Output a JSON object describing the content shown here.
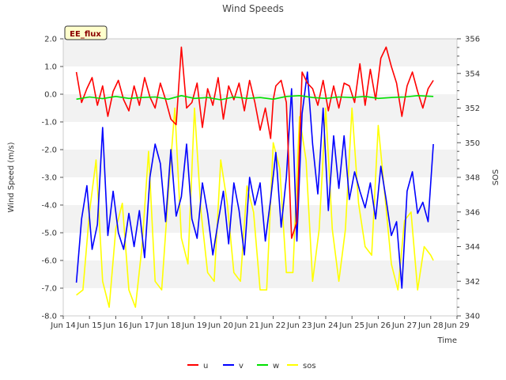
{
  "chart_data": {
    "type": "line",
    "title": "Wind Speeds",
    "xlabel": "Time",
    "ylabel": "Wind Speed (m/s)",
    "y2label": "SOS",
    "badge": "EE_flux",
    "xlim": [
      0,
      15
    ],
    "ylim": [
      -8.0,
      2.0
    ],
    "y2lim": [
      340,
      356
    ],
    "x_ticks": [
      0,
      1,
      2,
      3,
      4,
      5,
      6,
      7,
      8,
      9,
      10,
      11,
      12,
      13,
      14,
      15
    ],
    "x_tick_labels": [
      "Jun 14",
      "Jun 15",
      "Jun 16",
      "Jun 17",
      "Jun 18",
      "Jun 19",
      "Jun 20",
      "Jun 21",
      "Jun 22",
      "Jun 23",
      "Jun 24",
      "Jun 25",
      "Jun 26",
      "Jun 27",
      "Jun 28",
      "Jun 29"
    ],
    "y_ticks": [
      -8,
      -7,
      -6,
      -5,
      -4,
      -3,
      -2,
      -1,
      0,
      1,
      2
    ],
    "y_tick_labels": [
      "-8.0",
      "-7.0",
      "-6.0",
      "-5.0",
      "-4.0",
      "-3.0",
      "-2.0",
      "-1.0",
      "0.0",
      "1.0",
      "2.0"
    ],
    "y2_ticks": [
      340,
      342,
      344,
      346,
      348,
      350,
      352,
      354,
      356
    ],
    "y2_tick_labels": [
      "340",
      "342",
      "344",
      "346",
      "348",
      "350",
      "352",
      "354",
      "356"
    ],
    "series": [
      {
        "name": "u",
        "axis": "left",
        "color": "#ff0000",
        "x": [
          0.5,
          0.7,
          0.9,
          1.1,
          1.3,
          1.5,
          1.7,
          1.9,
          2.1,
          2.3,
          2.5,
          2.7,
          2.9,
          3.1,
          3.3,
          3.5,
          3.7,
          3.9,
          4.1,
          4.3,
          4.5,
          4.7,
          4.9,
          5.1,
          5.3,
          5.5,
          5.7,
          5.9,
          6.1,
          6.3,
          6.5,
          6.7,
          6.9,
          7.1,
          7.3,
          7.5,
          7.7,
          7.9,
          8.0,
          8.1,
          8.3,
          8.5,
          8.7,
          8.9,
          9.1,
          9.3,
          9.5,
          9.7,
          9.9,
          10.1,
          10.3,
          10.5,
          10.7,
          10.9,
          11.1,
          11.3,
          11.5,
          11.7,
          11.9,
          12.1,
          12.3,
          12.5,
          12.7,
          12.9,
          13.1,
          13.3,
          13.5,
          13.7,
          13.9,
          14.1
        ],
        "values": [
          0.8,
          -0.3,
          0.2,
          0.6,
          -0.4,
          0.3,
          -0.8,
          0.1,
          0.5,
          -0.2,
          -0.6,
          0.3,
          -0.4,
          0.6,
          -0.1,
          -0.5,
          0.4,
          -0.2,
          -0.9,
          -1.1,
          1.7,
          -0.5,
          -0.3,
          0.4,
          -1.2,
          0.2,
          -0.4,
          0.6,
          -0.9,
          0.3,
          -0.2,
          0.4,
          -0.6,
          0.5,
          -0.3,
          -1.3,
          -0.5,
          -1.6,
          -0.2,
          0.3,
          0.5,
          -0.3,
          -5.2,
          -4.6,
          0.8,
          0.4,
          0.2,
          -0.4,
          0.5,
          -0.6,
          0.3,
          -0.5,
          0.4,
          0.3,
          -0.3,
          1.1,
          -0.4,
          0.9,
          -0.2,
          1.3,
          1.7,
          1.0,
          0.4,
          -0.8,
          0.3,
          0.8,
          0.1,
          -0.5,
          0.2,
          0.5
        ]
      },
      {
        "name": "v",
        "axis": "left",
        "color": "#0000ff",
        "x": [
          0.5,
          0.7,
          0.9,
          1.1,
          1.3,
          1.5,
          1.7,
          1.9,
          2.1,
          2.3,
          2.5,
          2.7,
          2.9,
          3.1,
          3.3,
          3.5,
          3.7,
          3.9,
          4.1,
          4.3,
          4.5,
          4.7,
          4.9,
          5.1,
          5.3,
          5.5,
          5.7,
          5.9,
          6.1,
          6.3,
          6.5,
          6.7,
          6.9,
          7.1,
          7.3,
          7.5,
          7.7,
          7.9,
          8.1,
          8.3,
          8.5,
          8.7,
          8.9,
          9.1,
          9.3,
          9.5,
          9.7,
          9.9,
          10.1,
          10.3,
          10.5,
          10.7,
          10.9,
          11.1,
          11.3,
          11.5,
          11.7,
          11.9,
          12.1,
          12.3,
          12.5,
          12.7,
          12.9,
          13.1,
          13.3,
          13.5,
          13.7,
          13.9,
          14.1
        ],
        "values": [
          -6.8,
          -4.5,
          -3.3,
          -5.6,
          -4.7,
          -1.2,
          -5.1,
          -3.5,
          -5.0,
          -5.6,
          -4.3,
          -5.5,
          -4.2,
          -5.9,
          -3.0,
          -1.8,
          -2.5,
          -4.6,
          -2.0,
          -4.4,
          -3.7,
          -1.8,
          -4.5,
          -5.2,
          -3.2,
          -4.3,
          -5.8,
          -4.6,
          -3.5,
          -5.4,
          -3.2,
          -4.2,
          -5.8,
          -3.0,
          -4.0,
          -3.2,
          -5.3,
          -3.8,
          -2.1,
          -4.8,
          -3.0,
          0.2,
          -5.3,
          -0.7,
          0.8,
          -1.8,
          -3.6,
          -0.5,
          -4.2,
          -1.5,
          -3.4,
          -1.5,
          -3.8,
          -2.8,
          -3.5,
          -4.1,
          -3.2,
          -4.5,
          -2.6,
          -3.8,
          -5.1,
          -4.6,
          -7.0,
          -3.5,
          -2.8,
          -4.3,
          -3.9,
          -4.6,
          -1.8
        ]
      },
      {
        "name": "w",
        "axis": "left",
        "color": "#00e000",
        "x": [
          0.5,
          1.0,
          1.5,
          2.0,
          2.5,
          3.0,
          3.5,
          4.0,
          4.5,
          5.0,
          5.5,
          6.0,
          6.5,
          7.0,
          7.5,
          8.0,
          8.5,
          9.0,
          9.5,
          10.0,
          10.5,
          11.0,
          11.5,
          12.0,
          12.5,
          13.0,
          13.5,
          14.1
        ],
        "values": [
          -0.18,
          -0.1,
          -0.16,
          -0.08,
          -0.15,
          -0.12,
          -0.1,
          -0.18,
          -0.05,
          -0.15,
          -0.12,
          -0.2,
          -0.1,
          -0.15,
          -0.12,
          -0.18,
          -0.08,
          -0.05,
          -0.12,
          -0.15,
          -0.1,
          -0.12,
          -0.08,
          -0.15,
          -0.12,
          -0.1,
          -0.05,
          -0.08
        ]
      },
      {
        "name": "sos",
        "axis": "right",
        "color": "#ffff00",
        "x": [
          0.5,
          0.75,
          1.0,
          1.25,
          1.5,
          1.75,
          2.0,
          2.25,
          2.5,
          2.75,
          3.0,
          3.25,
          3.5,
          3.75,
          4.0,
          4.25,
          4.5,
          4.75,
          5.0,
          5.25,
          5.5,
          5.75,
          6.0,
          6.25,
          6.5,
          6.75,
          7.0,
          7.25,
          7.5,
          7.75,
          8.0,
          8.25,
          8.5,
          8.75,
          9.0,
          9.25,
          9.5,
          9.75,
          10.0,
          10.25,
          10.5,
          10.75,
          11.0,
          11.25,
          11.5,
          11.75,
          12.0,
          12.25,
          12.5,
          12.75,
          13.0,
          13.25,
          13.5,
          13.75,
          14.0,
          14.1
        ],
        "values": [
          341.2,
          341.5,
          346.0,
          349.0,
          342.0,
          340.5,
          345.0,
          346.5,
          341.5,
          340.5,
          344.0,
          349.5,
          342.0,
          341.5,
          347.0,
          352.0,
          344.5,
          343.0,
          352.0,
          346.0,
          342.5,
          342.0,
          349.0,
          346.5,
          342.5,
          342.0,
          347.5,
          346.0,
          341.5,
          341.5,
          350.0,
          348.5,
          342.5,
          342.5,
          351.5,
          349.0,
          342.0,
          345.0,
          352.0,
          345.0,
          342.0,
          345.0,
          352.0,
          346.5,
          344.0,
          343.5,
          351.0,
          347.0,
          343.0,
          341.5,
          345.5,
          346.0,
          341.5,
          344.0,
          343.5,
          343.2
        ]
      }
    ],
    "legend": [
      "u",
      "v",
      "w",
      "sos"
    ],
    "legend_position": "bottom-center",
    "grid": "horizontal bands"
  }
}
